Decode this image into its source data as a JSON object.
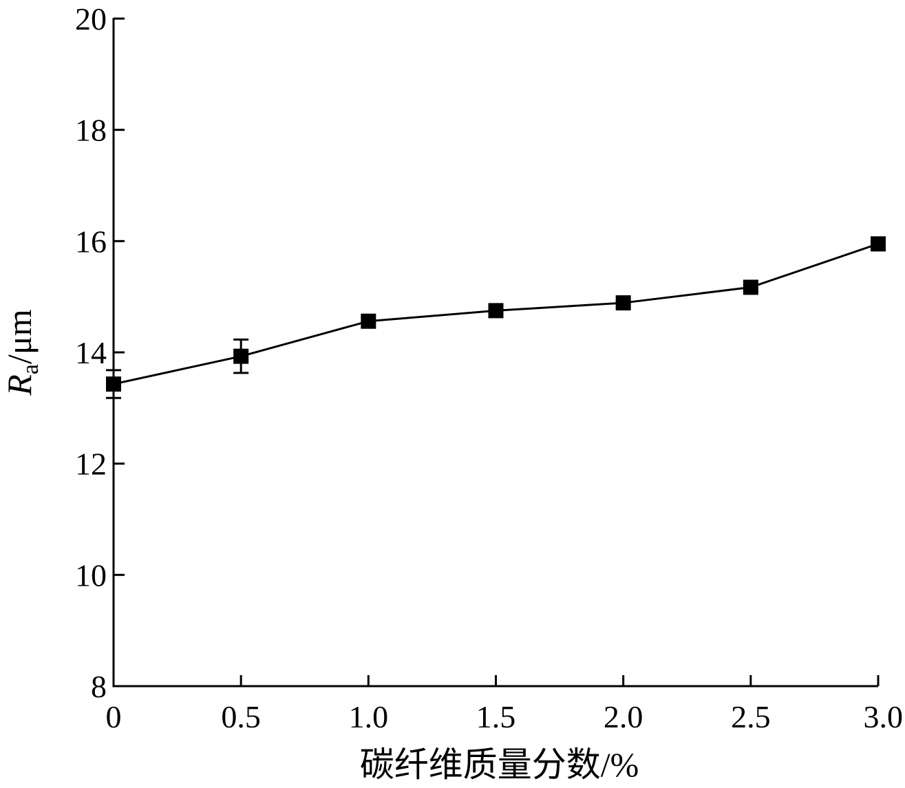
{
  "chart_data": {
    "type": "line",
    "xlabel": "碳纤维质量分数/%",
    "ylabel": {
      "symbol": "R",
      "subscript": "a",
      "unit": "/μm"
    },
    "x_ticks": [
      "0",
      "0.5",
      "1.0",
      "1.5",
      "2.0",
      "2.5",
      "3.0"
    ],
    "y_ticks": [
      "8",
      "10",
      "12",
      "14",
      "16",
      "18",
      "20"
    ],
    "xlim": [
      0,
      3.0
    ],
    "ylim": [
      8,
      20
    ],
    "grid": false,
    "marker": "filled-square",
    "series": [
      {
        "x": [
          0,
          0.5,
          1.0,
          1.5,
          2.0,
          2.5,
          3.0
        ],
        "y": [
          13.43,
          13.93,
          14.56,
          14.75,
          14.89,
          15.17,
          15.95
        ],
        "error": [
          0.25,
          0.3,
          0,
          0,
          0,
          0,
          0
        ]
      }
    ]
  }
}
